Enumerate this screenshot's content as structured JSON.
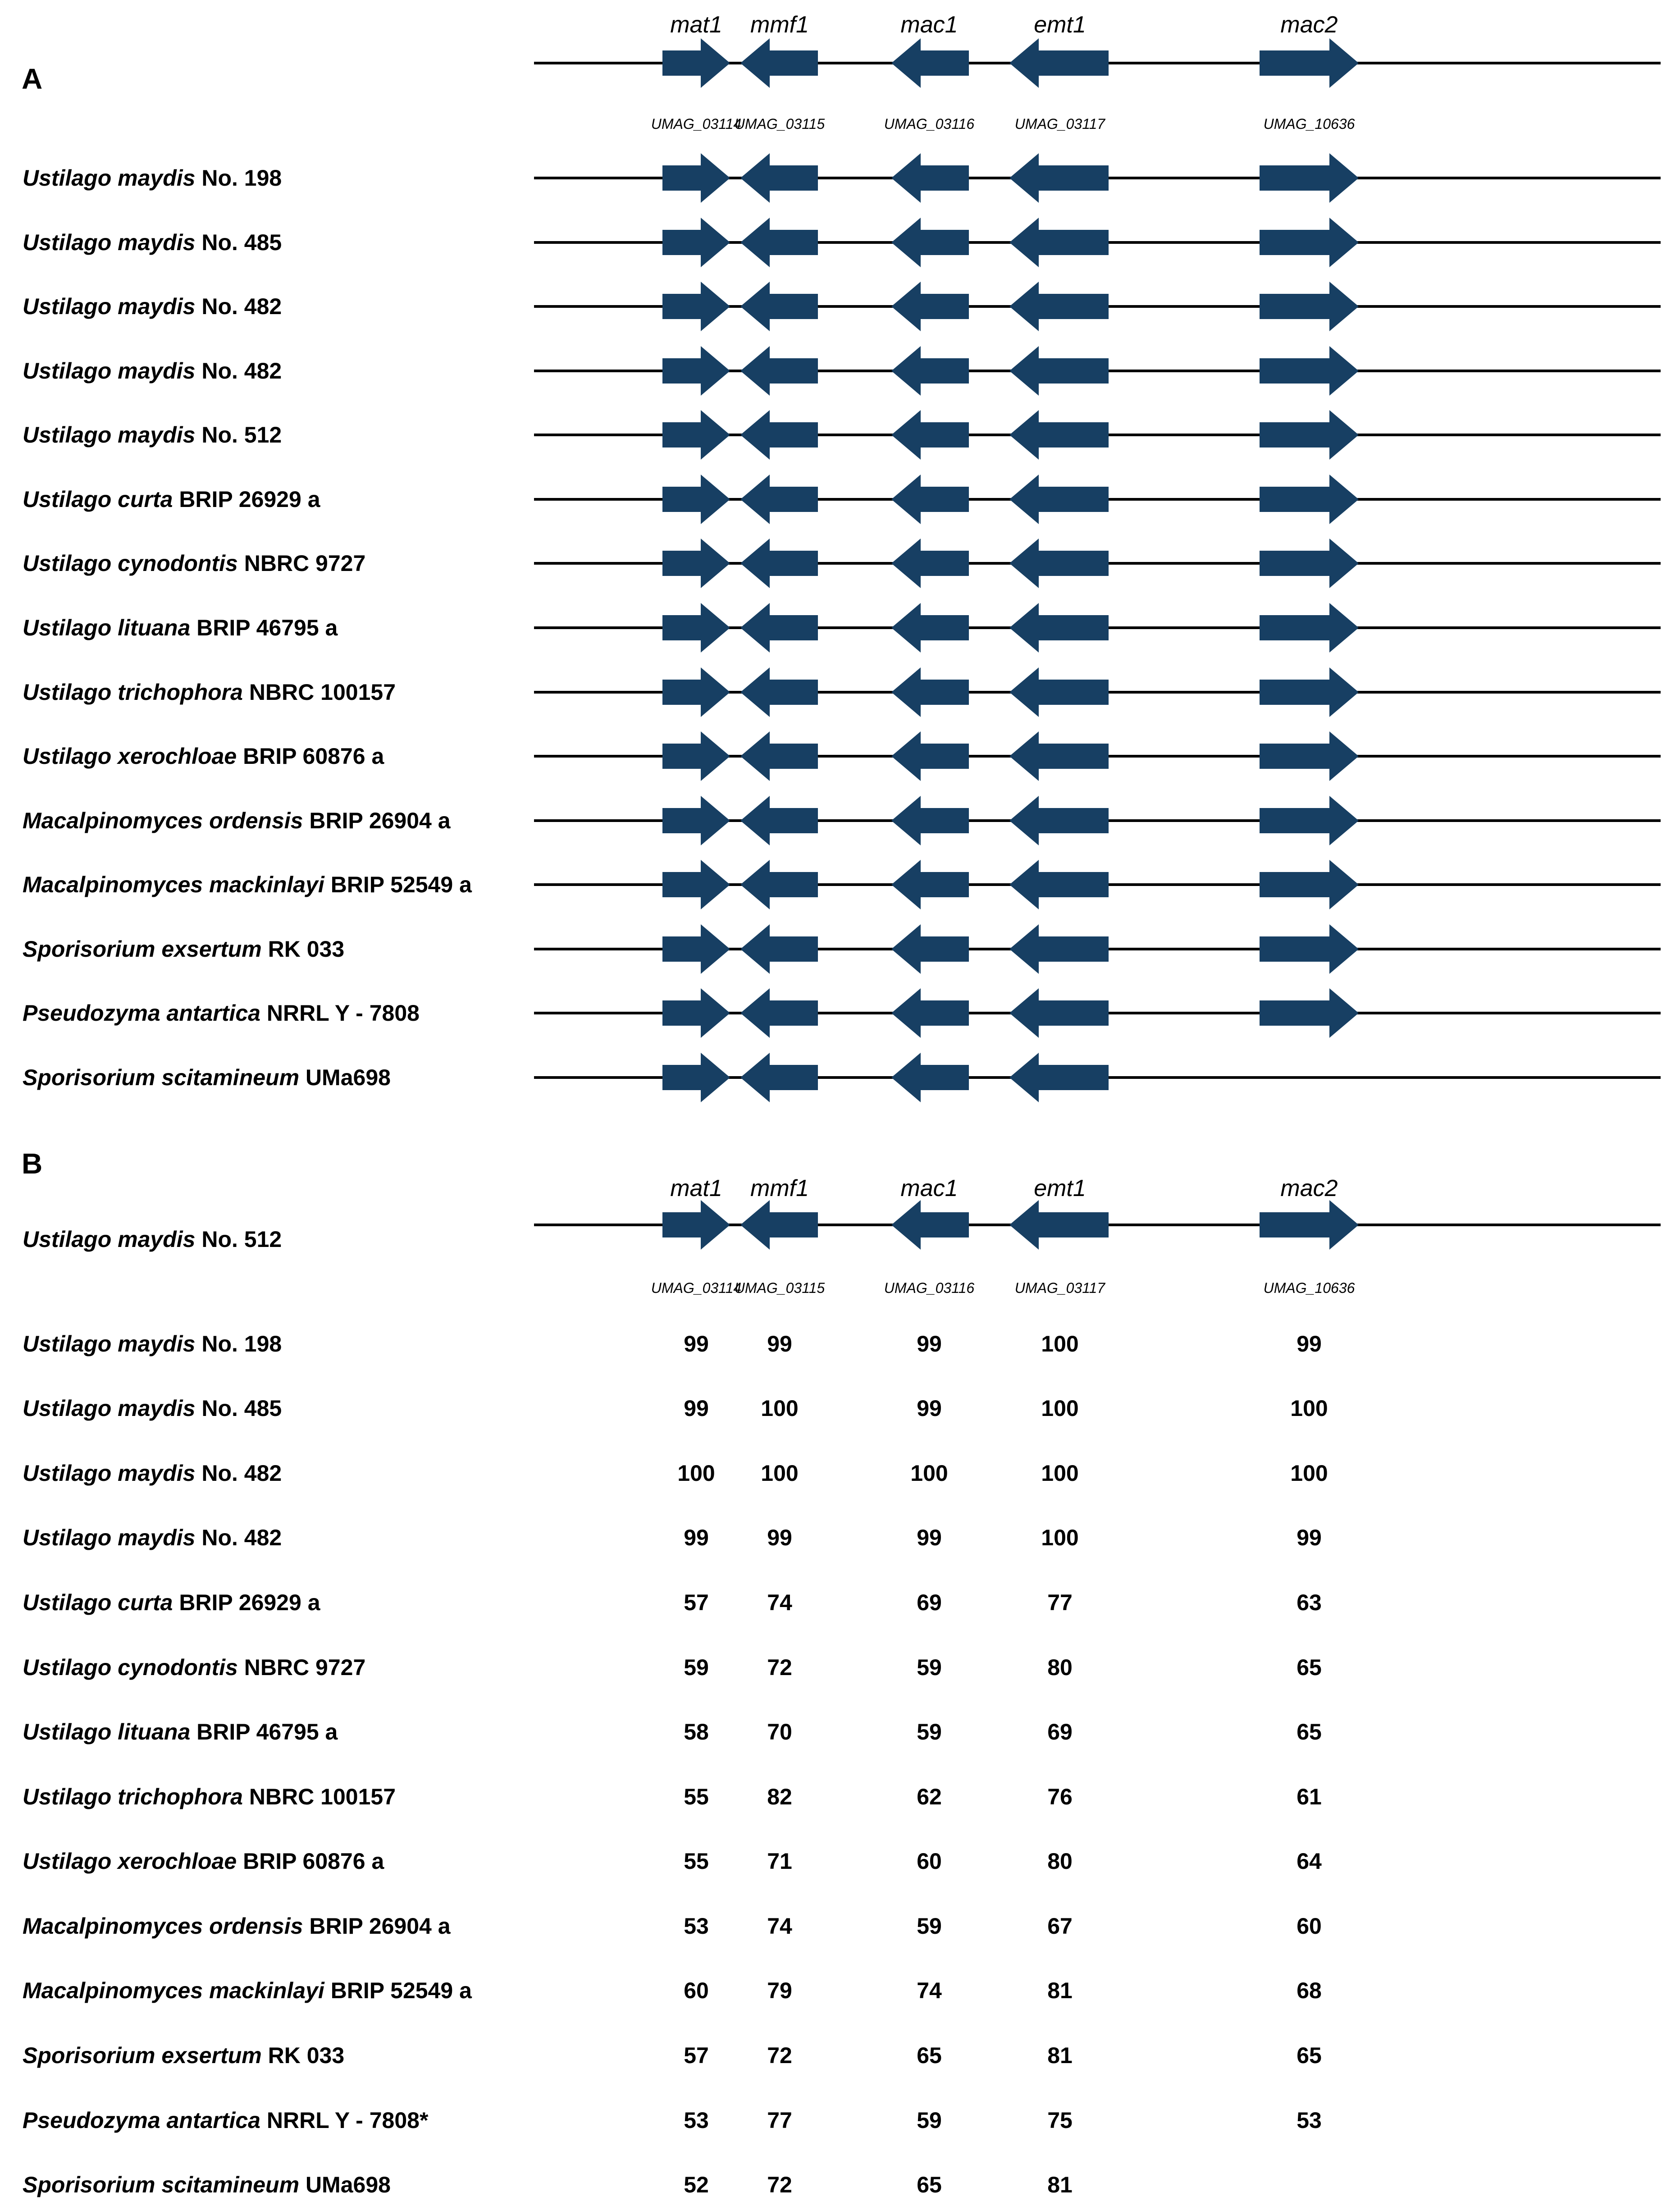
{
  "panel_a": {
    "label": "A",
    "genes": [
      {
        "name": "mat1",
        "locus": "UMAG_03114",
        "direction": "right"
      },
      {
        "name": "mmf1",
        "locus": "UMAG_03115",
        "direction": "left"
      },
      {
        "name": "mac1",
        "locus": "UMAG_03116",
        "direction": "left"
      },
      {
        "name": "emt1",
        "locus": "UMAG_03117",
        "direction": "left"
      },
      {
        "name": "mac2",
        "locus": "UMAG_10636",
        "direction": "right"
      }
    ],
    "strains": [
      {
        "genus_species": "Ustilago maydis",
        "strain": "No. 198",
        "has_mac2": true
      },
      {
        "genus_species": "Ustilago maydis",
        "strain": "No. 485",
        "has_mac2": true
      },
      {
        "genus_species": "Ustilago maydis",
        "strain": "No. 482",
        "has_mac2": true
      },
      {
        "genus_species": "Ustilago maydis",
        "strain": "No. 482",
        "has_mac2": true
      },
      {
        "genus_species": "Ustilago maydis",
        "strain": "No. 512",
        "has_mac2": true
      },
      {
        "genus_species": "Ustilago curta",
        "strain": "BRIP 26929 a",
        "has_mac2": true
      },
      {
        "genus_species": "Ustilago cynodontis",
        "strain": "NBRC 9727",
        "has_mac2": true
      },
      {
        "genus_species": "Ustilago lituana",
        "strain": "BRIP 46795 a",
        "has_mac2": true
      },
      {
        "genus_species": "Ustilago trichophora",
        "strain": "NBRC 100157",
        "has_mac2": true
      },
      {
        "genus_species": "Ustilago xerochloae",
        "strain": "BRIP 60876 a",
        "has_mac2": true
      },
      {
        "genus_species": "Macalpinomyces ordensis",
        "strain": "BRIP 26904 a",
        "has_mac2": true
      },
      {
        "genus_species": "Macalpinomyces mackinlayi",
        "strain": "BRIP 52549 a",
        "has_mac2": true
      },
      {
        "genus_species": "Sporisorium exsertum",
        "strain": "RK 033",
        "has_mac2": true
      },
      {
        "genus_species": "Pseudozyma antartica",
        "strain": "NRRL Y - 7808",
        "has_mac2": true
      },
      {
        "genus_species": "Sporisorium scitamineum",
        "strain": "UMa698",
        "has_mac2": false
      }
    ]
  },
  "panel_b": {
    "label": "B",
    "reference": {
      "genus_species": "Ustilago maydis",
      "strain": "No. 512"
    },
    "genes": [
      {
        "name": "mat1",
        "locus": "UMAG_03114",
        "direction": "right"
      },
      {
        "name": "mmf1",
        "locus": "UMAG_03115",
        "direction": "left"
      },
      {
        "name": "mac1",
        "locus": "UMAG_03116",
        "direction": "left"
      },
      {
        "name": "emt1",
        "locus": "UMAG_03117",
        "direction": "left"
      },
      {
        "name": "mac2",
        "locus": "UMAG_10636",
        "direction": "right"
      }
    ],
    "rows": [
      {
        "genus_species": "Ustilago maydis",
        "strain": "No. 198",
        "values": [
          "99",
          "99",
          "99",
          "100",
          "99"
        ]
      },
      {
        "genus_species": "Ustilago maydis",
        "strain": "No. 485",
        "values": [
          "99",
          "100",
          "99",
          "100",
          "100"
        ]
      },
      {
        "genus_species": "Ustilago maydis",
        "strain": "No. 482",
        "values": [
          "100",
          "100",
          "100",
          "100",
          "100"
        ]
      },
      {
        "genus_species": "Ustilago maydis",
        "strain": "No. 482",
        "values": [
          "99",
          "99",
          "99",
          "100",
          "99"
        ]
      },
      {
        "genus_species": "Ustilago curta",
        "strain": "BRIP 26929 a",
        "values": [
          "57",
          "74",
          "69",
          "77",
          "63"
        ]
      },
      {
        "genus_species": "Ustilago cynodontis",
        "strain": "NBRC 9727",
        "values": [
          "59",
          "72",
          "59",
          "80",
          "65"
        ]
      },
      {
        "genus_species": "Ustilago lituana",
        "strain": "BRIP 46795 a",
        "values": [
          "58",
          "70",
          "59",
          "69",
          "65"
        ]
      },
      {
        "genus_species": "Ustilago trichophora",
        "strain": "NBRC 100157",
        "values": [
          "55",
          "82",
          "62",
          "76",
          "61"
        ]
      },
      {
        "genus_species": "Ustilago xerochloae",
        "strain": "BRIP 60876 a",
        "values": [
          "55",
          "71",
          "60",
          "80",
          "64"
        ]
      },
      {
        "genus_species": "Macalpinomyces ordensis",
        "strain": "BRIP 26904 a",
        "values": [
          "53",
          "74",
          "59",
          "67",
          "60"
        ]
      },
      {
        "genus_species": "Macalpinomyces mackinlayi",
        "strain": "BRIP 52549 a",
        "values": [
          "60",
          "79",
          "74",
          "81",
          "68"
        ]
      },
      {
        "genus_species": "Sporisorium exsertum",
        "strain": "RK 033",
        "values": [
          "57",
          "72",
          "65",
          "81",
          "65"
        ]
      },
      {
        "genus_species": "Pseudozyma antartica",
        "strain": "NRRL Y - 7808*",
        "values": [
          "53",
          "77",
          "59",
          "75",
          "53"
        ]
      },
      {
        "genus_species": "Sporisorium scitamineum",
        "strain": "UMa698",
        "values": [
          "52",
          "72",
          "65",
          "81",
          ""
        ]
      }
    ]
  },
  "colors": {
    "arrow": "#173f63",
    "line": "#000000"
  }
}
